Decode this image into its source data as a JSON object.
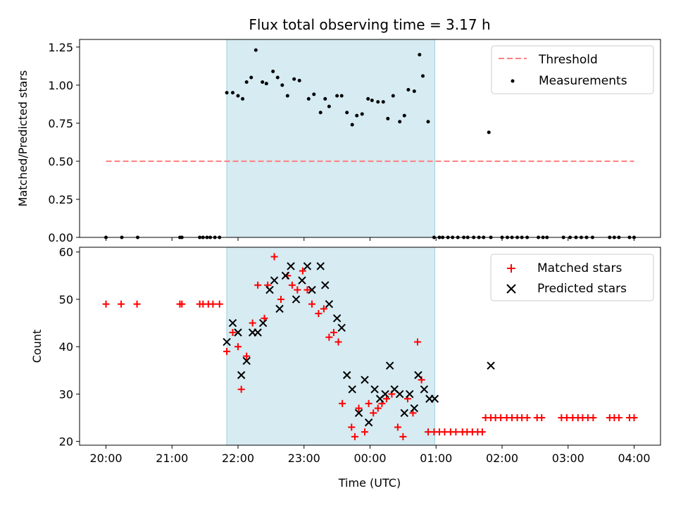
{
  "title": "Flux total observing time = 3.17 h",
  "x_tick_labels": [
    "20:00",
    "21:00",
    "22:00",
    "23:00",
    "00:00",
    "01:00",
    "02:00",
    "03:00",
    "04:00"
  ],
  "x_ticks_hours": [
    20,
    21,
    22,
    23,
    24,
    25,
    26,
    27,
    28
  ],
  "xlabel": "Time (UTC)",
  "xlim_hours": [
    19.6,
    28.4
  ],
  "shaded_interval": {
    "start": "21:50",
    "end": "00:59",
    "start_h": 21.83,
    "end_h": 24.98
  },
  "chart_data": [
    {
      "type": "scatter",
      "ylabel": "Matched/Predicted stars",
      "ylim": [
        0,
        1.3
      ],
      "y_ticks": [
        0.0,
        0.25,
        0.5,
        0.75,
        1.0,
        1.25
      ],
      "y_tick_labels": [
        "0.00",
        "0.25",
        "0.50",
        "0.75",
        "1.00",
        "1.25"
      ],
      "legend_position": "top-right",
      "series": [
        {
          "name": "Threshold",
          "type": "line",
          "style": "dashed",
          "color": "#ff7f7f",
          "x": [
            20.0,
            28.0
          ],
          "y": [
            0.5,
            0.5
          ]
        },
        {
          "name": "Measurements",
          "type": "scatter",
          "color": "#000000",
          "x": [
            20.0,
            20.24,
            20.48,
            21.12,
            21.15,
            21.42,
            21.47,
            21.53,
            21.58,
            21.65,
            21.72,
            21.83,
            21.92,
            22.0,
            22.07,
            22.13,
            22.2,
            22.27,
            22.37,
            22.43,
            22.53,
            22.6,
            22.67,
            22.75,
            22.85,
            22.93,
            23.07,
            23.15,
            23.25,
            23.32,
            23.38,
            23.5,
            23.57,
            23.65,
            23.73,
            23.8,
            23.88,
            23.97,
            24.03,
            24.12,
            24.2,
            24.27,
            24.35,
            24.45,
            24.52,
            24.58,
            24.67,
            24.75,
            24.8,
            24.88,
            24.97,
            25.05,
            25.1,
            25.18,
            25.25,
            25.33,
            25.42,
            25.48,
            25.57,
            25.65,
            25.72,
            25.8,
            25.83,
            26.0,
            26.08,
            26.15,
            26.23,
            26.3,
            26.38,
            26.55,
            26.62,
            26.68,
            26.93,
            27.03,
            27.12,
            27.2,
            27.28,
            27.37,
            27.63,
            27.7,
            27.77,
            27.93,
            28.0
          ],
          "y": [
            0,
            0,
            0,
            0,
            0,
            0,
            0,
            0,
            0,
            0,
            0,
            0.95,
            0.95,
            0.93,
            0.91,
            1.02,
            1.05,
            1.23,
            1.02,
            1.01,
            1.09,
            1.05,
            1.0,
            0.93,
            1.04,
            1.03,
            0.91,
            0.94,
            0.82,
            0.91,
            0.86,
            0.93,
            0.93,
            0.82,
            0.74,
            0.8,
            0.81,
            0.91,
            0.9,
            0.89,
            0.89,
            0.78,
            0.93,
            0.76,
            0.8,
            0.97,
            0.96,
            1.2,
            1.06,
            0.76,
            0,
            0,
            0,
            0,
            0,
            0,
            0,
            0,
            0,
            0,
            0,
            0.69,
            0,
            0,
            0,
            0,
            0,
            0,
            0,
            0,
            0,
            0,
            0,
            0,
            0,
            0,
            0,
            0,
            0,
            0,
            0,
            0,
            0
          ]
        }
      ]
    },
    {
      "type": "scatter",
      "ylabel": "Count",
      "ylim": [
        19.2,
        61
      ],
      "y_ticks": [
        20,
        30,
        40,
        50,
        60
      ],
      "y_tick_labels": [
        "20",
        "30",
        "40",
        "50",
        "60"
      ],
      "legend_position": "top-right",
      "series": [
        {
          "name": "Matched stars",
          "marker": "+",
          "color": "#ff0000",
          "x": [
            20.0,
            20.23,
            20.47,
            21.12,
            21.15,
            21.42,
            21.47,
            21.55,
            21.62,
            21.72,
            21.83,
            21.92,
            22.0,
            22.05,
            22.13,
            22.22,
            22.3,
            22.4,
            22.45,
            22.55,
            22.65,
            22.75,
            22.82,
            22.9,
            22.98,
            23.05,
            23.12,
            23.22,
            23.3,
            23.38,
            23.45,
            23.52,
            23.58,
            23.72,
            23.77,
            23.83,
            23.92,
            23.98,
            24.05,
            24.12,
            24.18,
            24.25,
            24.33,
            24.42,
            24.5,
            24.57,
            24.65,
            24.72,
            24.78,
            24.88,
            24.97,
            25.05,
            25.13,
            25.22,
            25.3,
            25.4,
            25.47,
            25.55,
            25.63,
            25.7,
            25.75,
            25.83,
            25.9,
            25.98,
            26.07,
            26.15,
            26.23,
            26.3,
            26.38,
            26.53,
            26.6,
            26.9,
            26.98,
            27.07,
            27.15,
            27.22,
            27.3,
            27.38,
            27.63,
            27.7,
            27.77,
            27.93,
            28.0
          ],
          "y": [
            49,
            49,
            49,
            49,
            49,
            49,
            49,
            49,
            49,
            49,
            39,
            43,
            40,
            31,
            38,
            45,
            53,
            46,
            53,
            59,
            50,
            55,
            53,
            52,
            56,
            52,
            49,
            47,
            48,
            42,
            43,
            41,
            28,
            23,
            21,
            27,
            22,
            28,
            26,
            27,
            28,
            29,
            30,
            23,
            21,
            29,
            26,
            41,
            33,
            22,
            22,
            22,
            22,
            22,
            22,
            22,
            22,
            22,
            22,
            22,
            25,
            25,
            25,
            25,
            25,
            25,
            25,
            25,
            25,
            25,
            25,
            25,
            25,
            25,
            25,
            25,
            25,
            25,
            25,
            25,
            25,
            25,
            25
          ]
        },
        {
          "name": "Predicted stars",
          "marker": "x",
          "color": "#000000",
          "x": [
            21.83,
            21.92,
            22.0,
            22.05,
            22.13,
            22.22,
            22.3,
            22.38,
            22.48,
            22.55,
            22.63,
            22.72,
            22.8,
            22.88,
            22.97,
            23.05,
            23.12,
            23.25,
            23.32,
            23.38,
            23.5,
            23.57,
            23.65,
            23.73,
            23.83,
            23.92,
            23.98,
            24.07,
            24.15,
            24.23,
            24.3,
            24.37,
            24.45,
            24.52,
            24.6,
            24.67,
            24.73,
            24.82,
            24.9,
            24.98,
            25.83
          ],
          "y": [
            41,
            45,
            43,
            34,
            37,
            43,
            43,
            45,
            52,
            54,
            48,
            55,
            57,
            50,
            54,
            57,
            52,
            57,
            53,
            49,
            46,
            44,
            34,
            31,
            26,
            33,
            24,
            31,
            29,
            30,
            36,
            31,
            30,
            26,
            30,
            27,
            34,
            31,
            29,
            29,
            36
          ]
        }
      ]
    }
  ]
}
